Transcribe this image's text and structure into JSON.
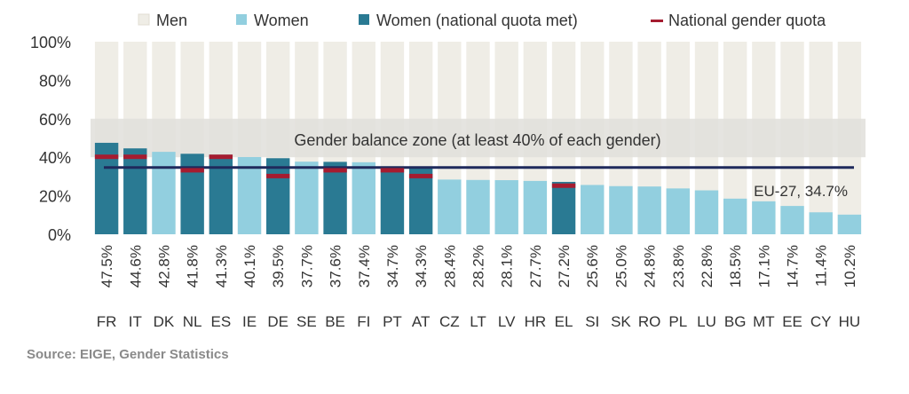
{
  "chart_data": {
    "type": "bar",
    "title": "",
    "xlabel": "",
    "ylabel": "",
    "ylim": [
      0,
      100
    ],
    "yticks": [
      "0%",
      "20%",
      "40%",
      "60%",
      "80%",
      "100%"
    ],
    "legend": {
      "position": "top",
      "items": [
        {
          "key": "men",
          "label": "Men",
          "color": "#efede6"
        },
        {
          "key": "women",
          "label": "Women",
          "color": "#92cfdf"
        },
        {
          "key": "women_quota",
          "label": "Women (national quota met)",
          "color": "#2a7a93"
        },
        {
          "key": "quota",
          "label": "National gender quota",
          "color": "#a51c30"
        }
      ]
    },
    "categories": [
      "FR",
      "IT",
      "DK",
      "NL",
      "ES",
      "IE",
      "DE",
      "SE",
      "BE",
      "FI",
      "PT",
      "AT",
      "CZ",
      "LT",
      "LV",
      "HR",
      "EL",
      "SI",
      "SK",
      "RO",
      "PL",
      "LU",
      "BG",
      "MT",
      "EE",
      "CY",
      "HU"
    ],
    "women_values": [
      47.5,
      44.6,
      42.8,
      41.8,
      41.3,
      40.1,
      39.5,
      37.7,
      37.6,
      37.4,
      34.7,
      34.3,
      28.4,
      28.2,
      28.1,
      27.7,
      27.2,
      25.6,
      25.0,
      24.8,
      23.8,
      22.8,
      18.5,
      17.1,
      14.7,
      11.4,
      10.2
    ],
    "value_labels": [
      "47.5%",
      "44.6%",
      "42.8%",
      "41.8%",
      "41.3%",
      "40.1%",
      "39.5%",
      "37.7%",
      "37.6%",
      "37.4%",
      "34.7%",
      "34.3%",
      "28.4%",
      "28.2%",
      "28.1%",
      "27.7%",
      "27.2%",
      "25.6%",
      "25.0%",
      "24.8%",
      "23.8%",
      "22.8%",
      "18.5%",
      "17.1%",
      "14.7%",
      "11.4%",
      "10.2%"
    ],
    "quota_met": [
      true,
      true,
      false,
      true,
      true,
      false,
      true,
      false,
      true,
      false,
      true,
      true,
      false,
      false,
      false,
      false,
      true,
      false,
      false,
      false,
      false,
      false,
      false,
      false,
      false,
      false,
      false
    ],
    "national_quota": [
      40,
      40,
      null,
      33,
      40,
      null,
      30,
      null,
      33,
      null,
      33,
      30,
      null,
      null,
      null,
      null,
      25,
      null,
      null,
      null,
      null,
      null,
      null,
      null,
      null,
      null,
      null
    ],
    "gender_balance_zone": {
      "range": [
        40,
        60
      ],
      "label": "Gender balance zone (at least 40% of each gender)",
      "color": "#e0dfdb"
    },
    "eu_average": {
      "value": 34.7,
      "label": "EU-27, 34.7%",
      "color": "#1f2a5c"
    }
  },
  "source": "Source: EIGE, Gender Statistics"
}
